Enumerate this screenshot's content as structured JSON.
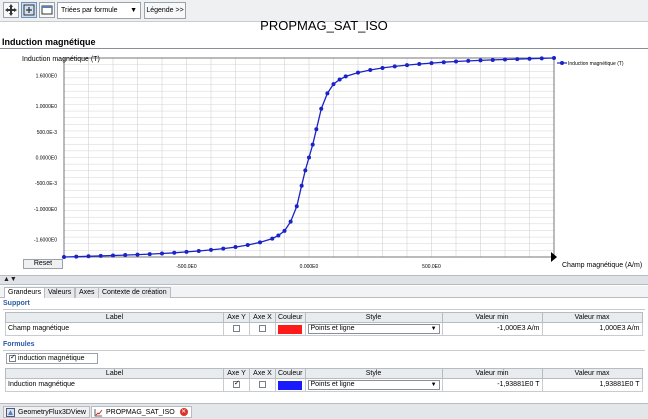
{
  "toolbar": {
    "sort_select": "Triées par formule",
    "legend_button": "Légende >>"
  },
  "window": {
    "title": "PROPMAG_SAT_ISO",
    "subtitle": "Induction magnétique"
  },
  "chart_data": {
    "type": "line",
    "ylabel": "Induction magnétique (T)",
    "xlabel": "Champ magnétique (A/m)",
    "xlim": [
      -1000,
      1000
    ],
    "ylim": [
      -1.93881,
      1.93881
    ],
    "x_tick_labels": [
      "-500.0E0",
      "0.000E0",
      "500.0E0"
    ],
    "y_tick_labels": [
      "1.6000E0",
      "1.0000E0",
      "500.0E-3",
      "0.0000E0",
      "-500.0E-3",
      "-1.0000E0",
      "-1.6000E0"
    ],
    "grid": true,
    "legend_position": "right",
    "series": [
      {
        "name": "Induction magnétique (T)",
        "color": "#1a23c8",
        "x": [
          -1000,
          -950,
          -900,
          -850,
          -800,
          -750,
          -700,
          -650,
          -600,
          -550,
          -500,
          -450,
          -400,
          -350,
          -300,
          -250,
          -200,
          -150,
          -125,
          -100,
          -75,
          -50,
          -30,
          -15,
          0,
          15,
          30,
          50,
          75,
          100,
          125,
          150,
          200,
          250,
          300,
          350,
          400,
          450,
          500,
          550,
          600,
          650,
          700,
          750,
          800,
          850,
          900,
          950,
          1000
        ],
        "y": [
          -1.9388,
          -1.932,
          -1.925,
          -1.918,
          -1.91,
          -1.901,
          -1.892,
          -1.882,
          -1.87,
          -1.856,
          -1.84,
          -1.822,
          -1.8,
          -1.775,
          -1.745,
          -1.705,
          -1.655,
          -1.58,
          -1.52,
          -1.43,
          -1.25,
          -0.95,
          -0.55,
          -0.25,
          0.0,
          0.25,
          0.55,
          0.95,
          1.25,
          1.43,
          1.52,
          1.58,
          1.655,
          1.705,
          1.745,
          1.775,
          1.8,
          1.822,
          1.84,
          1.856,
          1.87,
          1.882,
          1.892,
          1.901,
          1.91,
          1.918,
          1.925,
          1.932,
          1.9388
        ]
      }
    ]
  },
  "reset_button": "Reset",
  "tabs": [
    "Grandeurs",
    "Valeurs",
    "Axes",
    "Contexte de création"
  ],
  "columns": {
    "label": "Label",
    "axe_y": "Axe Y",
    "axe_x": "Axe X",
    "couleur": "Couleur",
    "style": "Style",
    "valeur_min": "Valeur min",
    "valeur_max": "Valeur max"
  },
  "support": {
    "heading": "Support",
    "row": {
      "label": "Champ magnétique",
      "axe_y": false,
      "axe_x": false,
      "color": "#ff1a1a",
      "style": "Points et ligne",
      "valeur_min": "-1,000E3 A/m",
      "valeur_max": "1,000E3 A/m"
    }
  },
  "formules": {
    "heading": "Formules",
    "formula_tab": "induction magnétique",
    "row": {
      "label": "Induction magnétique",
      "axe_y": true,
      "axe_x": false,
      "color": "#1a1aff",
      "style": "Points et ligne",
      "valeur_min": "-1,93881E0 T",
      "valeur_max": "1,93881E0 T"
    }
  },
  "bottom_tabs": [
    "GeometryFlux3DView",
    "PROPMAG_SAT_ISO"
  ]
}
